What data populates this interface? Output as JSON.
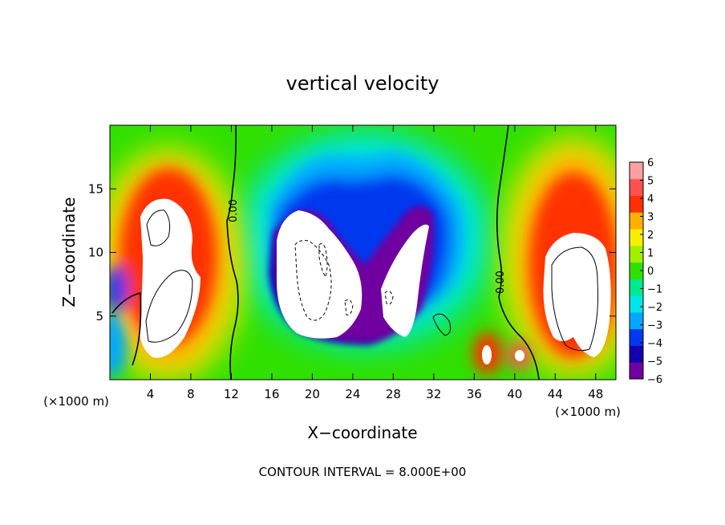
{
  "chart_data": {
    "type": "heatmap",
    "title": "vertical velocity",
    "xlabel": "X−coordinate",
    "ylabel": "Z−coordinate",
    "x_unit_left": "(×1000 m)",
    "x_unit_right": "(×1000 m)",
    "xlim": [
      0,
      50
    ],
    "ylim": [
      0,
      20
    ],
    "x_ticks": [
      4,
      8,
      12,
      16,
      20,
      24,
      28,
      32,
      36,
      40,
      44,
      48
    ],
    "y_ticks": [
      5,
      10,
      15
    ],
    "colorbar": {
      "ticks": [
        "6",
        "5",
        "4",
        "3",
        "2",
        "1",
        "0",
        "−1",
        "−2",
        "−3",
        "−4",
        "−5",
        "−6"
      ],
      "range": [
        -6,
        6
      ],
      "colors": [
        "#7000a0",
        "#1400b0",
        "#0038f0",
        "#00a8ff",
        "#00e6e6",
        "#00e890",
        "#30e000",
        "#a0f000",
        "#f6f000",
        "#ffb000",
        "#ff3000",
        "#ff5050",
        "#ffa0a0"
      ],
      "over_color": "#ffffff"
    },
    "contour_labels": [
      "0.00",
      "0.00"
    ],
    "footer": "CONTOUR INTERVAL = 8.000E+00",
    "features": [
      {
        "x": 5.5,
        "z": 10,
        "sign": "up"
      },
      {
        "x": 21,
        "z": 8.5,
        "sign": "down"
      },
      {
        "x": 28.5,
        "z": 7.5,
        "sign": "down"
      },
      {
        "x": 46.5,
        "z": 8,
        "sign": "up"
      },
      {
        "x": 37.5,
        "z": 2.2,
        "sign": "up"
      },
      {
        "x": 40.5,
        "z": 2,
        "sign": "up"
      },
      {
        "x": 1,
        "z": 2.5,
        "sign": "down"
      }
    ]
  }
}
